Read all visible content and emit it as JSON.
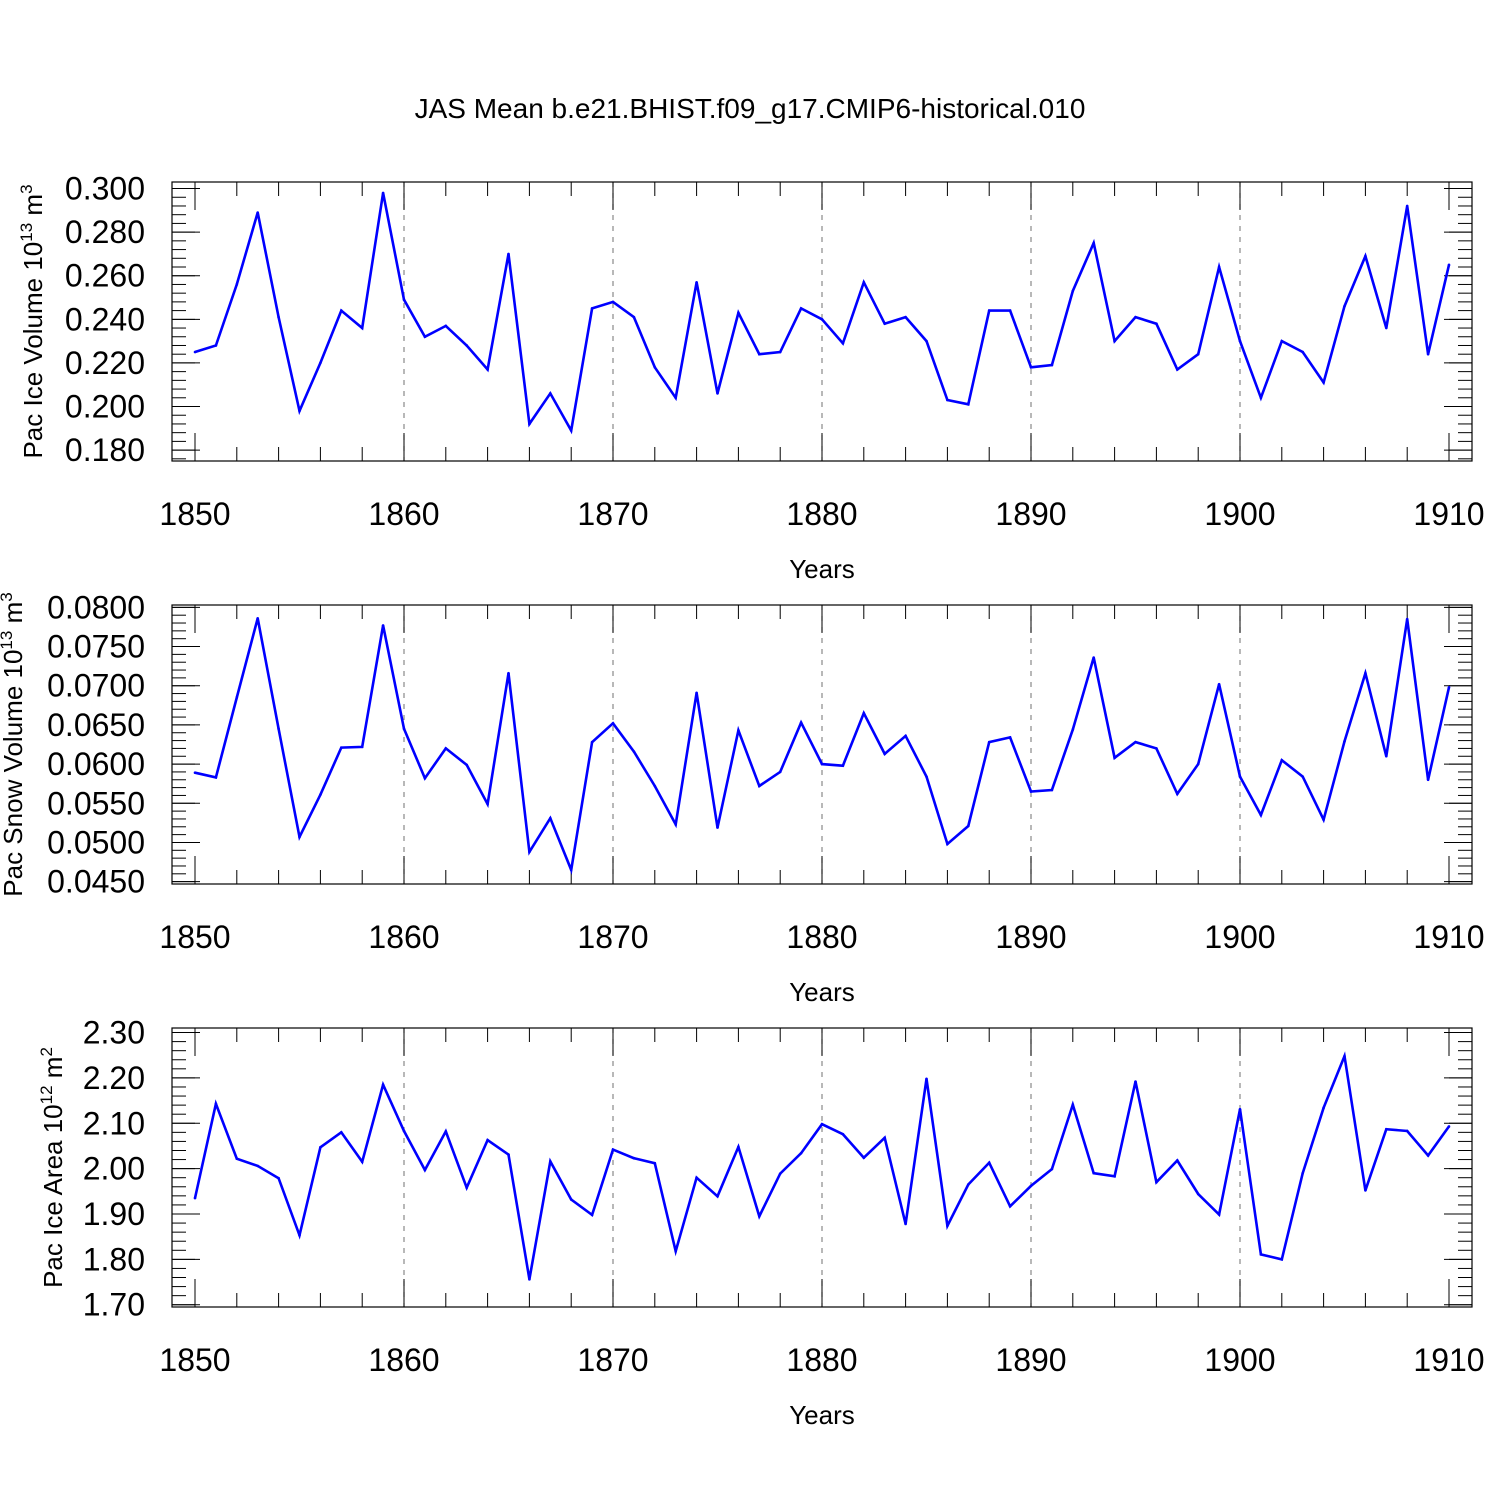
{
  "title": "JAS Mean b.e21.BHIST.f09_g17.CMIP6-historical.010",
  "chart_data": [
    {
      "type": "line",
      "ylabel_main": "Pac Ice Volume 10",
      "ylabel_exp": "13",
      "ylabel_unit": " m",
      "ylabel_unit_exp": "3",
      "xlabel": "Years",
      "xlim": [
        1850,
        1910
      ],
      "ylim": [
        0.175,
        0.303
      ],
      "x_ticks": [
        "1850",
        "1860",
        "1870",
        "1880",
        "1890",
        "1900",
        "1910"
      ],
      "y_ticks": [
        "0.300",
        "0.280",
        "0.260",
        "0.240",
        "0.220",
        "0.200",
        "0.180"
      ],
      "y_tick_values": [
        0.3,
        0.28,
        0.26,
        0.24,
        0.22,
        0.2,
        0.18
      ],
      "color": "#0000ff",
      "x_start": 1850,
      "values": [
        0.225,
        0.228,
        0.256,
        0.289,
        0.241,
        0.198,
        0.22,
        0.244,
        0.236,
        0.298,
        0.249,
        0.232,
        0.237,
        0.228,
        0.217,
        0.27,
        0.192,
        0.206,
        0.189,
        0.245,
        0.248,
        0.241,
        0.218,
        0.204,
        0.257,
        0.206,
        0.243,
        0.224,
        0.225,
        0.245,
        0.24,
        0.229,
        0.257,
        0.238,
        0.241,
        0.23,
        0.203,
        0.201,
        0.244,
        0.244,
        0.218,
        0.219,
        0.253,
        0.275,
        0.23,
        0.241,
        0.238,
        0.217,
        0.224,
        0.264,
        0.23,
        0.204,
        0.23,
        0.225,
        0.211,
        0.246,
        0.269,
        0.236,
        0.292,
        0.224,
        0.265
      ]
    },
    {
      "type": "line",
      "ylabel_main": "Pac Snow Volume 10",
      "ylabel_exp": "13",
      "ylabel_unit": " m",
      "ylabel_unit_exp": "3",
      "xlabel": "Years",
      "xlim": [
        1850,
        1910
      ],
      "ylim": [
        0.0447,
        0.0803
      ],
      "x_ticks": [
        "1850",
        "1860",
        "1870",
        "1880",
        "1890",
        "1900",
        "1910"
      ],
      "y_ticks": [
        "0.0800",
        "0.0750",
        "0.0700",
        "0.0650",
        "0.0600",
        "0.0550",
        "0.0500",
        "0.0450"
      ],
      "y_tick_values": [
        0.08,
        0.075,
        0.07,
        0.065,
        0.06,
        0.055,
        0.05,
        0.045
      ],
      "color": "#0000ff",
      "x_start": 1850,
      "values": [
        0.0589,
        0.0583,
        0.0685,
        0.0786,
        0.0645,
        0.0507,
        0.0561,
        0.0621,
        0.0622,
        0.0777,
        0.0645,
        0.0582,
        0.062,
        0.0599,
        0.0549,
        0.0716,
        0.0488,
        0.0531,
        0.0465,
        0.0628,
        0.0652,
        0.0616,
        0.0572,
        0.0523,
        0.0691,
        0.0519,
        0.0643,
        0.0572,
        0.059,
        0.0653,
        0.06,
        0.0598,
        0.0665,
        0.0613,
        0.0636,
        0.0584,
        0.0498,
        0.0521,
        0.0628,
        0.0634,
        0.0565,
        0.0567,
        0.0644,
        0.0736,
        0.0608,
        0.0628,
        0.062,
        0.0562,
        0.06,
        0.0702,
        0.0584,
        0.0535,
        0.0605,
        0.0584,
        0.0529,
        0.0629,
        0.0716,
        0.061,
        0.0785,
        0.058,
        0.0698
      ]
    },
    {
      "type": "line",
      "ylabel_main": "Pac Ice Area 10",
      "ylabel_exp": "12",
      "ylabel_unit": " m",
      "ylabel_unit_exp": "2",
      "xlabel": "Years",
      "xlim": [
        1850,
        1910
      ],
      "ylim": [
        1.695,
        2.31
      ],
      "x_ticks": [
        "1850",
        "1860",
        "1870",
        "1880",
        "1890",
        "1900",
        "1910"
      ],
      "y_ticks": [
        "2.30",
        "2.20",
        "2.10",
        "2.00",
        "1.90",
        "1.80",
        "1.70"
      ],
      "y_tick_values": [
        2.3,
        2.2,
        2.1,
        2.0,
        1.9,
        1.8,
        1.7
      ],
      "color": "#0000ff",
      "x_start": 1850,
      "values": [
        1.935,
        2.143,
        2.022,
        2.006,
        1.979,
        1.853,
        2.047,
        2.08,
        2.015,
        2.185,
        2.083,
        1.997,
        2.082,
        1.958,
        2.063,
        2.031,
        1.756,
        2.016,
        1.932,
        1.898,
        2.042,
        2.023,
        2.012,
        1.818,
        1.98,
        1.939,
        2.048,
        1.895,
        1.989,
        2.034,
        2.098,
        2.076,
        2.024,
        2.068,
        1.878,
        2.198,
        1.874,
        1.965,
        2.013,
        1.917,
        1.962,
        1.999,
        2.141,
        1.99,
        1.983,
        2.192,
        1.97,
        2.018,
        1.944,
        1.899,
        2.131,
        1.811,
        1.8,
        1.99,
        2.134,
        2.248,
        1.952,
        2.087,
        2.083,
        2.029,
        2.093
      ]
    }
  ]
}
